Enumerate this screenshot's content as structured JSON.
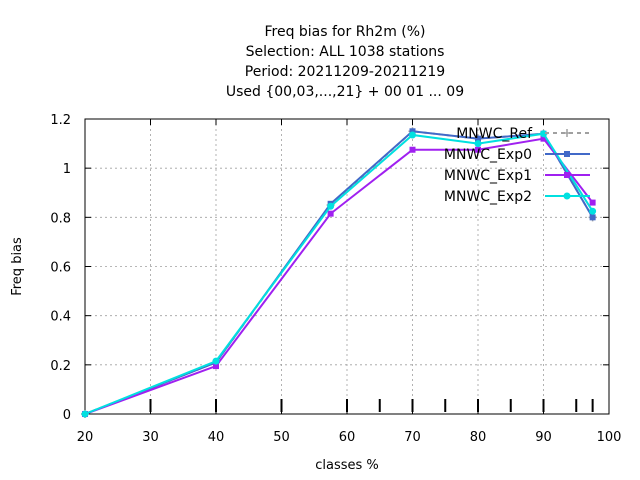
{
  "chart_data": {
    "type": "line",
    "title_lines": [
      "Freq bias  for Rh2m (%)",
      "Selection: ALL    1038 stations",
      "Period: 20211209-20211219",
      "Used {00,03,...,21} + 00 01 ... 09"
    ],
    "xlabel": "classes %",
    "ylabel": "Freq bias",
    "xlim": [
      20,
      100
    ],
    "ylim": [
      0,
      1.2
    ],
    "xticks": [
      20,
      30,
      40,
      50,
      60,
      70,
      80,
      90,
      100
    ],
    "yticks": [
      0,
      0.2,
      0.4,
      0.6,
      0.8,
      1,
      1.2
    ],
    "xtick_labels": [
      "20",
      "30",
      "40",
      "50",
      "60",
      "70",
      "80",
      "90",
      "100"
    ],
    "ytick_labels": [
      "0",
      "0.2",
      "0.4",
      "0.6",
      "0.8",
      "1",
      "1.2"
    ],
    "grid": true,
    "legend_position": "top-right",
    "bottom_marks": [
      30,
      40,
      50,
      60,
      65,
      70,
      75,
      80,
      85,
      90,
      95,
      97.5
    ],
    "x": [
      20,
      40,
      57.5,
      70,
      80,
      90,
      97.5
    ],
    "series": [
      {
        "name": "MNWC_Ref",
        "color": "#a0a0a0",
        "dash": "4,4",
        "marker": "plus",
        "values": [
          0.0,
          0.21,
          0.85,
          1.15,
          1.12,
          1.14,
          0.8
        ]
      },
      {
        "name": "MNWC_Exp0",
        "color": "#4169c8",
        "dash": "",
        "marker": "square",
        "values": [
          0.0,
          0.21,
          0.855,
          1.15,
          1.12,
          1.14,
          0.8
        ]
      },
      {
        "name": "MNWC_Exp1",
        "color": "#a020f0",
        "dash": "",
        "marker": "square",
        "values": [
          0.0,
          0.195,
          0.815,
          1.075,
          1.075,
          1.12,
          0.86
        ]
      },
      {
        "name": "MNWC_Exp2",
        "color": "#00e0e0",
        "dash": "",
        "marker": "circle",
        "values": [
          0.0,
          0.215,
          0.845,
          1.135,
          1.1,
          1.14,
          0.825
        ]
      }
    ]
  }
}
